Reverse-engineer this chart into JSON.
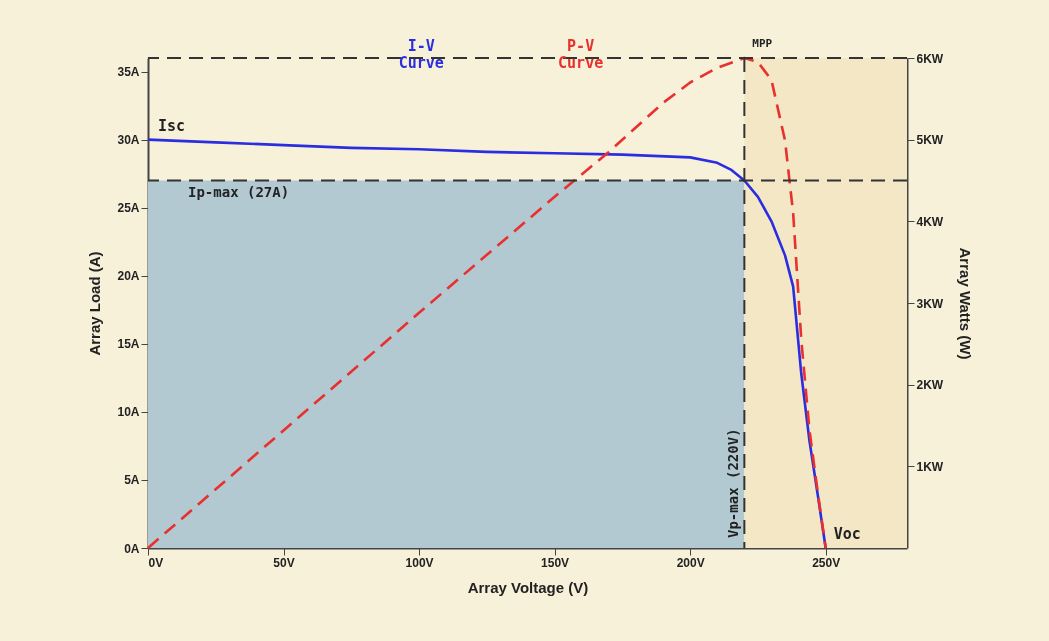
{
  "chart_data": {
    "type": "line",
    "xlabel": "Array Voltage (V)",
    "ylabel": "Array Load (A)",
    "y2label": "Array Watts (W)",
    "xlim": [
      0,
      280
    ],
    "xticks": [
      {
        "value": 0,
        "label": "0V"
      },
      {
        "value": 50,
        "label": "50V"
      },
      {
        "value": 100,
        "label": "100V"
      },
      {
        "value": 150,
        "label": "150V"
      },
      {
        "value": 200,
        "label": "200V"
      },
      {
        "value": 250,
        "label": "250V"
      }
    ],
    "ylim": [
      0,
      36
    ],
    "yticks": [
      {
        "value": 0,
        "label": "0A"
      },
      {
        "value": 5,
        "label": "5A"
      },
      {
        "value": 10,
        "label": "10A"
      },
      {
        "value": 15,
        "label": "15A"
      },
      {
        "value": 20,
        "label": "20A"
      },
      {
        "value": 25,
        "label": "25A"
      },
      {
        "value": 30,
        "label": "30A"
      },
      {
        "value": 35,
        "label": "35A"
      }
    ],
    "y2lim": [
      0,
      6
    ],
    "y2ticks": [
      {
        "value": 1,
        "label": "1KW"
      },
      {
        "value": 2,
        "label": "2KW"
      },
      {
        "value": 3,
        "label": "3KW"
      },
      {
        "value": 4,
        "label": "4KW"
      },
      {
        "value": 5,
        "label": "5KW"
      },
      {
        "value": 6,
        "label": "6KW"
      }
    ],
    "grid": false,
    "series": [
      {
        "name": "I-V Curve",
        "color": "#2a2ee0",
        "line_style": "solid",
        "x": [
          0,
          25,
          50,
          75,
          100,
          125,
          150,
          175,
          200,
          210,
          215,
          220,
          225,
          230,
          235,
          238,
          241,
          244,
          247,
          250
        ],
        "values": [
          30,
          29.8,
          29.6,
          29.4,
          29.3,
          29.1,
          29,
          28.9,
          28.7,
          28.3,
          27.8,
          27,
          25.8,
          24,
          21.5,
          19.2,
          12.8,
          7.9,
          4,
          0
        ]
      },
      {
        "name": "P-V Curve",
        "color": "#e8302f",
        "line_style": "dashed",
        "axis": "y2",
        "x": [
          0,
          50,
          100,
          150,
          170,
          190,
          200,
          210,
          220,
          225,
          230,
          235,
          238,
          241,
          244,
          247,
          250
        ],
        "values": [
          0,
          1.44,
          2.88,
          4.3,
          4.85,
          5.45,
          5.7,
          5.88,
          6,
          5.95,
          5.73,
          4.99,
          4.1,
          2.55,
          1.45,
          0.7,
          0
        ]
      }
    ],
    "ref_lines": [
      {
        "axis": "y",
        "value": 27,
        "label": "Ip-max (27A)",
        "line_style": "dashed",
        "color": "#333333"
      },
      {
        "axis": "x",
        "value": 220,
        "label": "Vp-max (220V)",
        "line_style": "dashed",
        "color": "#333333"
      },
      {
        "axis": "y2",
        "value": 6,
        "line_style": "dashed",
        "color": "#333333"
      }
    ],
    "bands": [
      {
        "axis": "x",
        "from": 0,
        "to": 220,
        "color": "#b3c9d1"
      },
      {
        "axis": "x",
        "from": 220,
        "to": 280,
        "color": "#f3e7c6"
      }
    ],
    "annotations": [
      {
        "text": "Isc",
        "x": 0,
        "y": 30
      },
      {
        "text": "MPP",
        "x": 220,
        "y": 36
      },
      {
        "text": "Voc",
        "x": 250,
        "y": 0
      }
    ]
  }
}
